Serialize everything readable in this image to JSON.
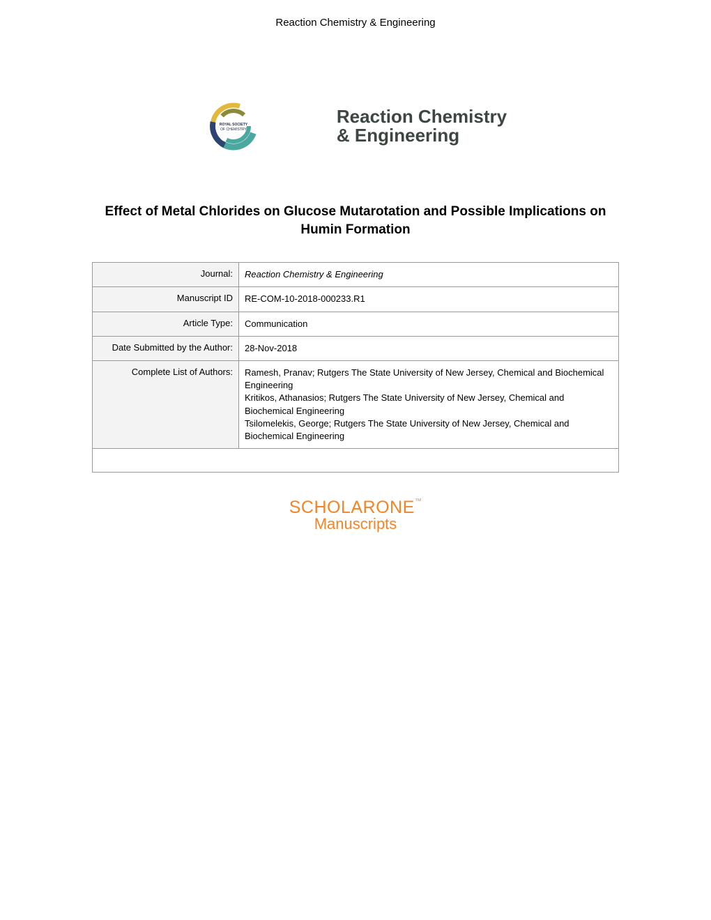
{
  "header": {
    "journal_header": "Reaction Chemistry & Engineering"
  },
  "logos": {
    "rsc": {
      "text_line1": "ROYAL SOCIETY",
      "text_line2": "OF CHEMISTRY",
      "colors": {
        "teal": "#4aa8a0",
        "navy": "#2d4470",
        "yellow": "#e2b93c",
        "olive": "#8a8a3a",
        "text": "#1a2a4a"
      }
    },
    "journal": {
      "line1": "Reaction Chemistry",
      "line2": "& Engineering",
      "color": "#3d4641"
    }
  },
  "title": "Effect of Metal Chlorides on Glucose Mutarotation and Possible Implications on Humin Formation",
  "table": {
    "columns": [
      "label",
      "value"
    ],
    "column_widths": [
      "210px",
      "auto"
    ],
    "label_align": "right",
    "label_bg": "#f3f3f3",
    "value_bg": "#ffffff",
    "border_color": "#999999",
    "font_size": 13,
    "rows": [
      {
        "label": "Journal:",
        "value": "Reaction Chemistry & Engineering",
        "italic": true
      },
      {
        "label": "Manuscript ID",
        "value": "RE-COM-10-2018-000233.R1"
      },
      {
        "label": "Article Type:",
        "value": "Communication"
      },
      {
        "label": "Date Submitted by the Author:",
        "value": "28-Nov-2018"
      },
      {
        "label": "Complete List of Authors:",
        "value": "Ramesh, Pranav; Rutgers The State University of New Jersey, Chemical and Biochemical Engineering\nKritikos, Athanasios; Rutgers The State University of New Jersey, Chemical and Biochemical Engineering\nTsilomelekis, George; Rutgers The State University of New Jersey, Chemical and Biochemical Engineering"
      }
    ]
  },
  "scholarone": {
    "line1_bold": "SCHOLAR",
    "line1_thin": "ONE",
    "tm": "™",
    "line2": "Manuscripts",
    "color": "#f58426"
  }
}
